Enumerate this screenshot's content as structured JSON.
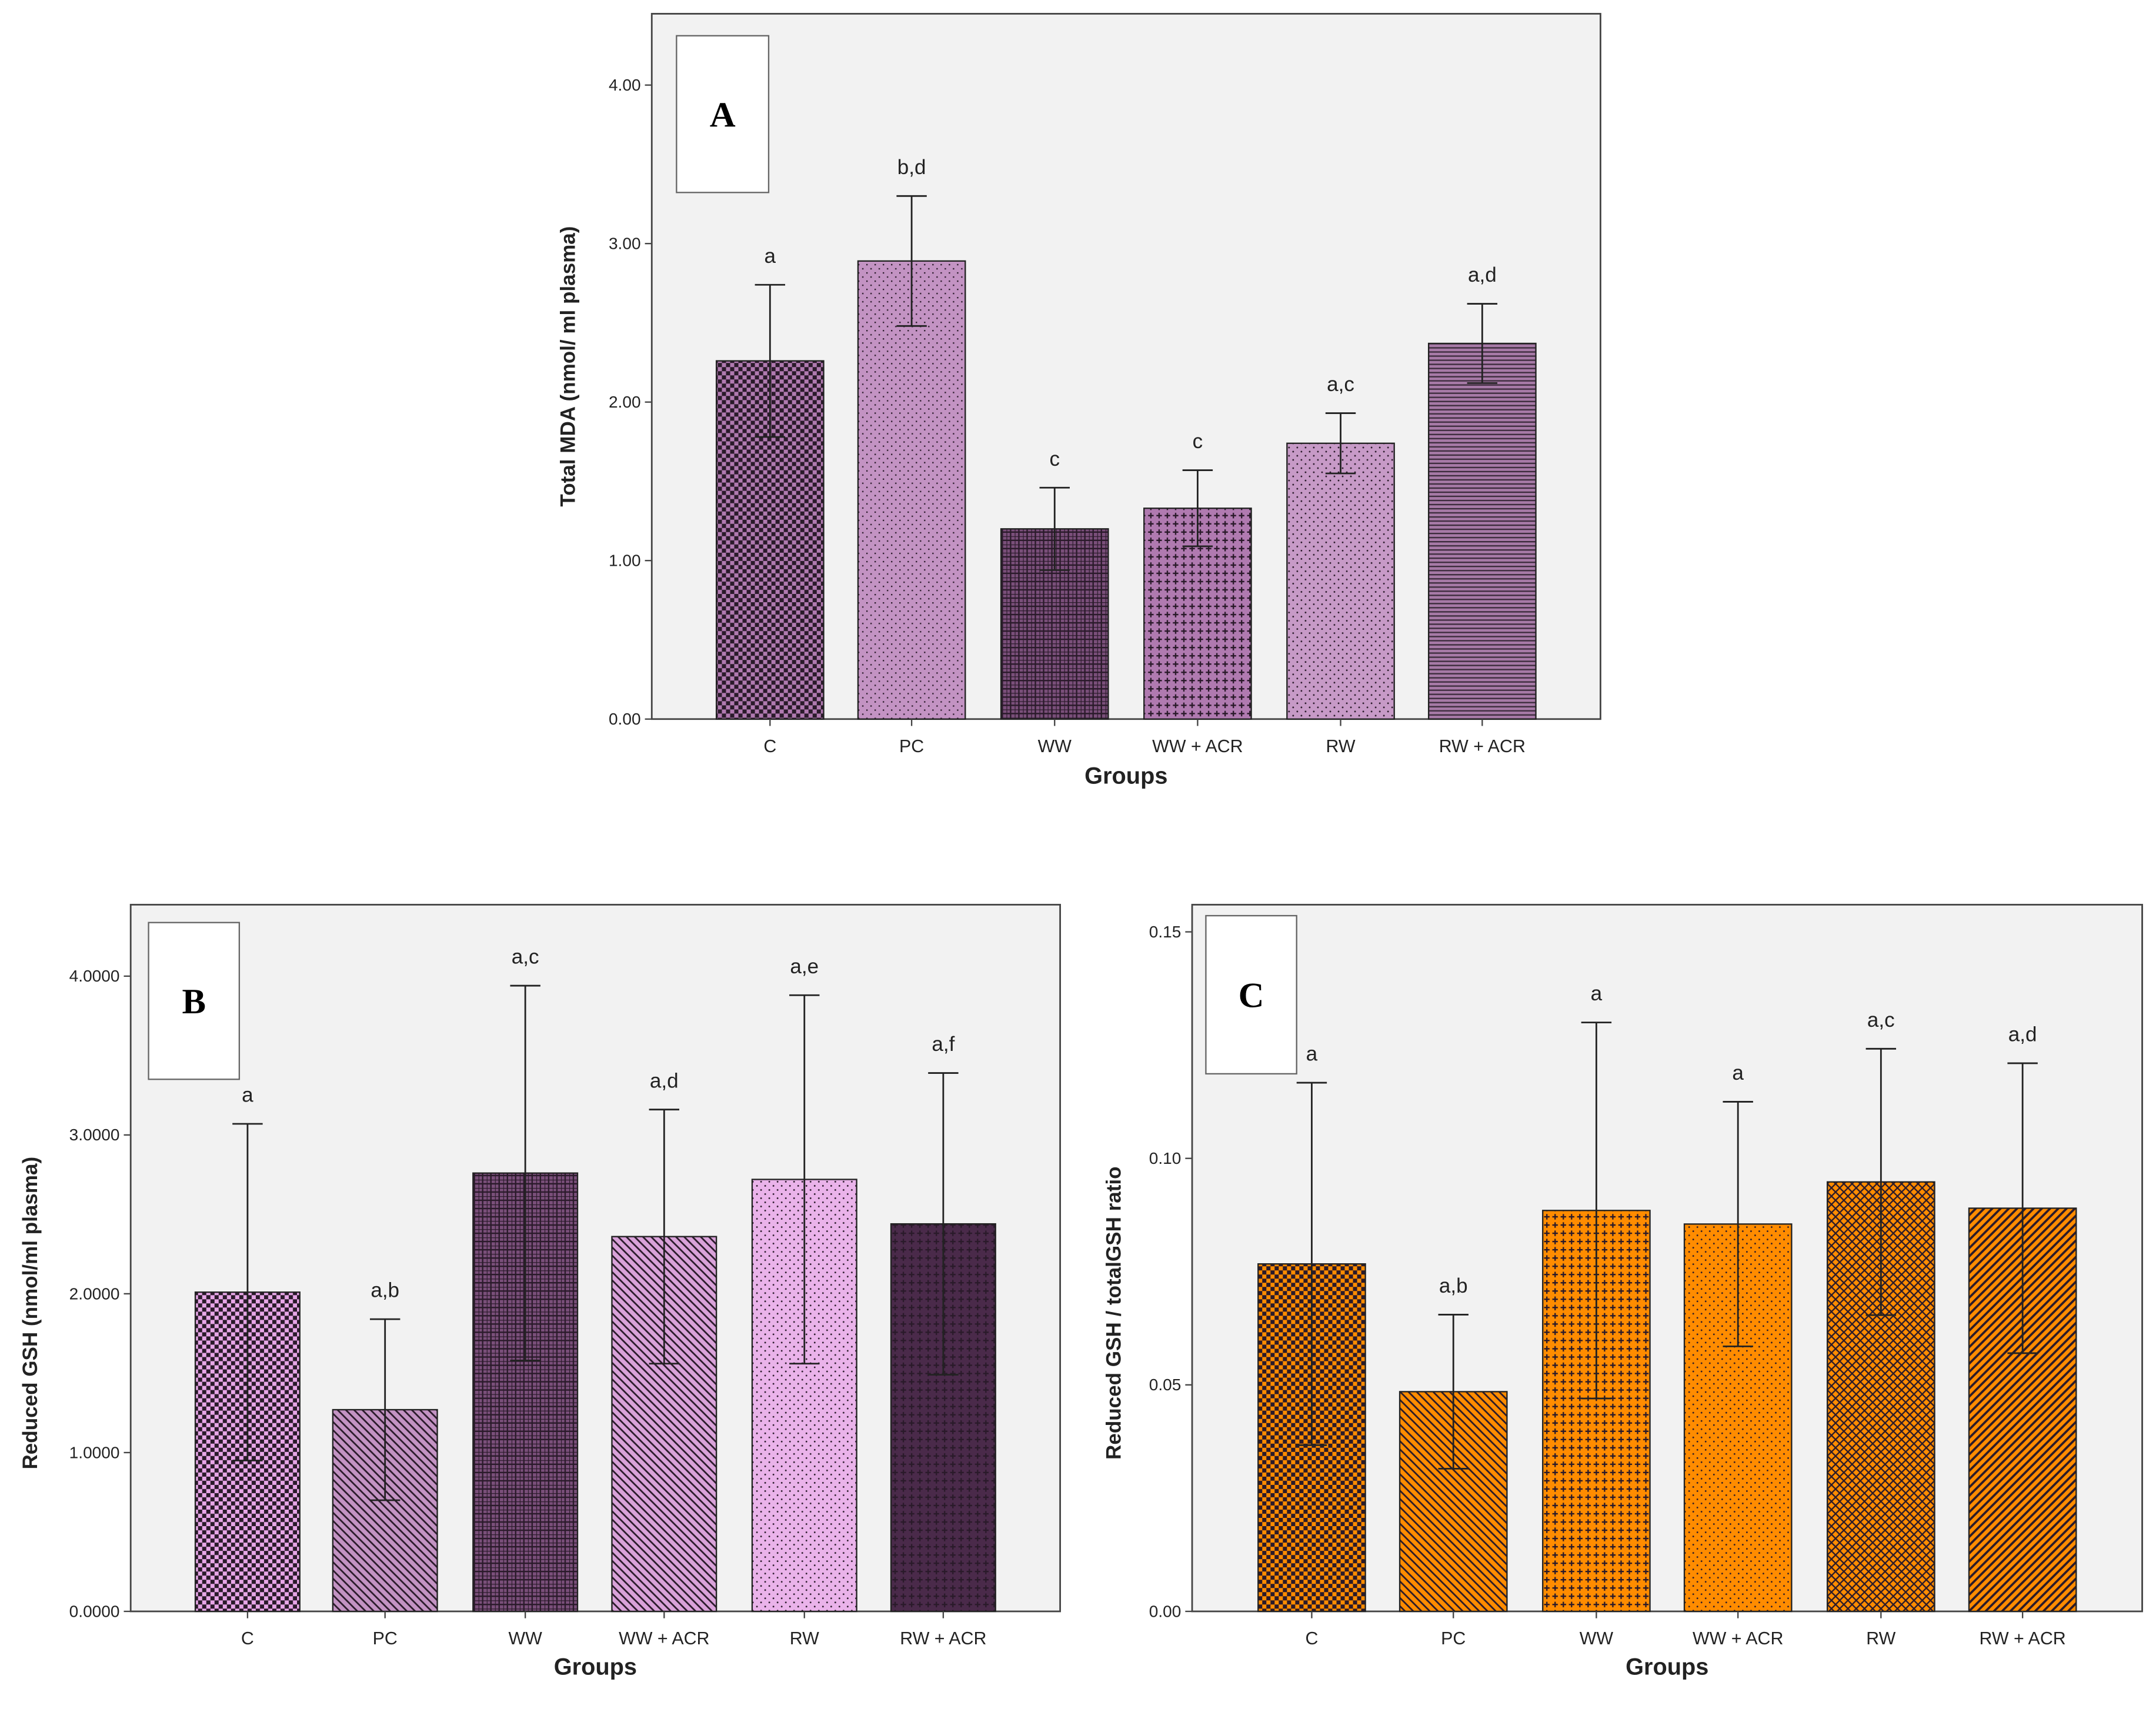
{
  "chart_data": [
    {
      "type": "bar",
      "panel_label": "A",
      "xlabel": "Groups",
      "ylabel": "Total MDA (nmol/ ml plasma)",
      "ylim": [
        0,
        4.45
      ],
      "yticks": [
        0,
        1,
        2,
        3,
        4
      ],
      "ytick_labels": [
        "0.00",
        "1.00",
        "2.00",
        "3.00",
        "4.00"
      ],
      "grid": false,
      "categories": [
        "C",
        "PC",
        "WW",
        "WW + ACR",
        "RW",
        "RW + ACR"
      ],
      "values": [
        2.26,
        2.89,
        1.2,
        1.33,
        1.74,
        2.37
      ],
      "error": [
        0.48,
        0.41,
        0.26,
        0.24,
        0.19,
        0.25
      ],
      "significance": [
        "a",
        "b,d",
        "c",
        "c",
        "a,c",
        "a,d"
      ],
      "patterns": [
        "checker",
        "fine-dots",
        "dark-grid",
        "cross",
        "dots",
        "hlines"
      ],
      "colors": [
        "#b07ab0",
        "#c393c3",
        "#7a4f7a",
        "#b07ab0",
        "#c79ac7",
        "#a77aa7"
      ]
    },
    {
      "type": "bar",
      "panel_label": "B",
      "xlabel": "Groups",
      "ylabel": "Reduced GSH (nmol/ml plasma)",
      "ylim": [
        0,
        4.45
      ],
      "yticks": [
        0,
        1,
        2,
        3,
        4
      ],
      "ytick_labels": [
        "0.0000",
        "1.0000",
        "2.0000",
        "3.0000",
        "4.0000"
      ],
      "grid": false,
      "categories": [
        "C",
        "PC",
        "WW",
        "WW + ACR",
        "RW",
        "RW + ACR"
      ],
      "values": [
        2.01,
        1.27,
        2.76,
        2.36,
        2.72,
        2.44
      ],
      "error": [
        1.06,
        0.57,
        1.18,
        0.8,
        1.16,
        0.95
      ],
      "significance": [
        "a",
        "a,b",
        "a,c",
        "a,d",
        "a,e",
        "a,f"
      ],
      "patterns": [
        "checker",
        "diag-back",
        "dark-grid",
        "diag-back",
        "dots",
        "cross"
      ],
      "colors": [
        "#e7a6e7",
        "#c393c3",
        "#7a4f7a",
        "#d9a2d9",
        "#eab3ea",
        "#4a2a4a"
      ]
    },
    {
      "type": "bar",
      "panel_label": "C",
      "xlabel": "Groups",
      "ylabel": "Reduced GSH / totalGSH ratio",
      "ylim": [
        0,
        0.156
      ],
      "yticks": [
        0,
        0.05,
        0.1,
        0.15
      ],
      "ytick_labels": [
        "0.00",
        "0.05",
        "0.10",
        "0.15"
      ],
      "grid": false,
      "categories": [
        "C",
        "PC",
        "WW",
        "WW + ACR",
        "RW",
        "RW + ACR"
      ],
      "values": [
        0.0767,
        0.0485,
        0.0885,
        0.0855,
        0.0948,
        0.089
      ],
      "error": [
        0.04,
        0.017,
        0.0415,
        0.027,
        0.0294,
        0.032
      ],
      "significance": [
        "a",
        "a,b",
        "a",
        "a",
        "a,c",
        "a,d"
      ],
      "patterns": [
        "checker",
        "diag-back",
        "cross",
        "dots",
        "crosshatch",
        "diag-fwd"
      ],
      "colors": [
        "#ff8c00",
        "#ff8c00",
        "#ff8c00",
        "#ff8c00",
        "#ff8c00",
        "#ff8c00"
      ]
    }
  ]
}
